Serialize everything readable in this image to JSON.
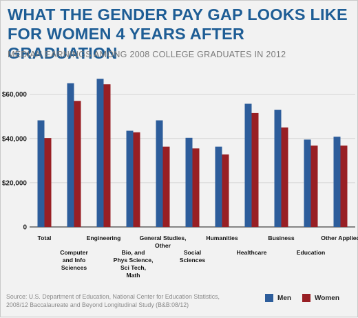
{
  "title": "WHAT THE GENDER PAY GAP LOOKS LIKE FOR WOMEN 4 YEARS AFTER GRADUATION",
  "subtitle": "MEDIAN EARNINGS AMONG 2008 COLLEGE GRADUATES IN 2012",
  "source": "Source: U.S. Department of Education, National Center for Education Statistics, 2008/12 Baccalaureate and Beyond Longitudinal Study (B&B:08/12)",
  "colors": {
    "men": "#2d5d9b",
    "women": "#981f24",
    "title": "#1e5d95",
    "grid": "#d4d4d4"
  },
  "chart_data": {
    "type": "bar",
    "title": "WHAT THE GENDER PAY GAP LOOKS LIKE FOR WOMEN 4 YEARS AFTER GRADUATION",
    "subtitle": "MEDIAN EARNINGS AMONG 2008 COLLEGE GRADUATES IN 2012",
    "categories": [
      "Total",
      "Computer and Info Sciences",
      "Engineering",
      "Bio, and Phys Science, Sci Tech, Math",
      "General Studies, Other",
      "Social Sciences",
      "Humanities",
      "Healthcare",
      "Business",
      "Education",
      "Other Applied"
    ],
    "category_lines": [
      [
        "Total"
      ],
      [
        "Computer",
        "and Info",
        "Sciences"
      ],
      [
        "Engineering"
      ],
      [
        "Bio, and",
        "Phys Science,",
        "Sci Tech,",
        "Math"
      ],
      [
        "General Studies,",
        "Other"
      ],
      [
        "Social",
        "Sciences"
      ],
      [
        "Humanities"
      ],
      [
        "Healthcare"
      ],
      [
        "Business"
      ],
      [
        "Education"
      ],
      [
        "Other Applied"
      ]
    ],
    "series": [
      {
        "name": "Men",
        "values": [
          48200,
          65000,
          67000,
          43500,
          48200,
          40300,
          36300,
          55700,
          53000,
          39500,
          40800
        ]
      },
      {
        "name": "Women",
        "values": [
          40200,
          57000,
          64500,
          42800,
          36300,
          35500,
          32800,
          51500,
          45000,
          36800,
          36800
        ]
      }
    ],
    "y_ticks": [
      0,
      20000,
      40000,
      60000
    ],
    "y_tick_labels": [
      "0",
      "$20,000",
      "$40,000",
      "$60,000"
    ],
    "ylim": [
      0,
      68000
    ],
    "grid": true,
    "legend_position": "bottom-right"
  }
}
